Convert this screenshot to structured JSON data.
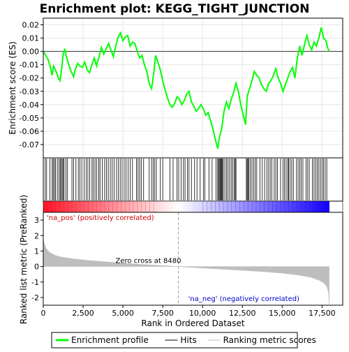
{
  "chart_data": {
    "type": "line",
    "title": "Enrichment plot: KEGG_TIGHT_JUNCTION",
    "colors": {
      "es_line": "#00ff00",
      "hits": "#000000",
      "metric_fill": "#bebebe",
      "pos_label": "#cc0000",
      "neg_label": "#0000cc",
      "zero_line": "#a0a0a0"
    },
    "enrichment_panel": {
      "ylabel": "Enrichment score (ES)",
      "ylim": [
        -0.08,
        0.025
      ],
      "yticks": [
        0.02,
        0.01,
        0.0,
        -0.01,
        -0.02,
        -0.03,
        -0.04,
        -0.05,
        -0.06,
        -0.07
      ],
      "ytick_labels": [
        "0.02",
        "0.01",
        "0.00",
        "-0.01",
        "-0.02",
        "-0.03",
        "-0.04",
        "-0.05",
        "-0.06",
        "-0.07"
      ],
      "grid": true,
      "es_points": [
        [
          0,
          0.0
        ],
        [
          150,
          -0.003
        ],
        [
          300,
          -0.006
        ],
        [
          450,
          -0.012
        ],
        [
          550,
          -0.018
        ],
        [
          650,
          -0.011
        ],
        [
          800,
          -0.015
        ],
        [
          950,
          -0.02
        ],
        [
          1050,
          -0.022
        ],
        [
          1150,
          -0.014
        ],
        [
          1250,
          -0.002
        ],
        [
          1350,
          0.002
        ],
        [
          1450,
          -0.004
        ],
        [
          1600,
          -0.01
        ],
        [
          1750,
          -0.015
        ],
        [
          1900,
          -0.019
        ],
        [
          2000,
          -0.014
        ],
        [
          2150,
          -0.009
        ],
        [
          2300,
          -0.011
        ],
        [
          2450,
          -0.012
        ],
        [
          2600,
          -0.008
        ],
        [
          2750,
          -0.014
        ],
        [
          2900,
          -0.016
        ],
        [
          3050,
          -0.01
        ],
        [
          3200,
          -0.005
        ],
        [
          3350,
          -0.011
        ],
        [
          3500,
          -0.004
        ],
        [
          3650,
          0.003
        ],
        [
          3800,
          -0.002
        ],
        [
          3950,
          0.002
        ],
        [
          4100,
          0.006
        ],
        [
          4250,
          0.001
        ],
        [
          4400,
          -0.004
        ],
        [
          4550,
          0.004
        ],
        [
          4700,
          0.011
        ],
        [
          4850,
          0.014
        ],
        [
          5000,
          0.008
        ],
        [
          5150,
          0.011
        ],
        [
          5300,
          0.012
        ],
        [
          5450,
          0.004
        ],
        [
          5600,
          0.007
        ],
        [
          5750,
          0.006
        ],
        [
          5900,
          0.0
        ],
        [
          6050,
          -0.005
        ],
        [
          6200,
          -0.003
        ],
        [
          6350,
          -0.01
        ],
        [
          6500,
          -0.015
        ],
        [
          6650,
          -0.024
        ],
        [
          6800,
          -0.028
        ],
        [
          6950,
          -0.015
        ],
        [
          7050,
          -0.003
        ],
        [
          7200,
          -0.008
        ],
        [
          7350,
          -0.014
        ],
        [
          7500,
          -0.022
        ],
        [
          7650,
          -0.029
        ],
        [
          7800,
          -0.035
        ],
        [
          7950,
          -0.04
        ],
        [
          8100,
          -0.042
        ],
        [
          8250,
          -0.039
        ],
        [
          8400,
          -0.034
        ],
        [
          8550,
          -0.036
        ],
        [
          8700,
          -0.04
        ],
        [
          8850,
          -0.037
        ],
        [
          9000,
          -0.032
        ],
        [
          9150,
          -0.03
        ],
        [
          9300,
          -0.038
        ],
        [
          9450,
          -0.041
        ],
        [
          9600,
          -0.045
        ],
        [
          9750,
          -0.043
        ],
        [
          9900,
          -0.04
        ],
        [
          10050,
          -0.043
        ],
        [
          10200,
          -0.048
        ],
        [
          10350,
          -0.046
        ],
        [
          10500,
          -0.052
        ],
        [
          10650,
          -0.058
        ],
        [
          10800,
          -0.066
        ],
        [
          10950,
          -0.073
        ],
        [
          11050,
          -0.065
        ],
        [
          11200,
          -0.058
        ],
        [
          11350,
          -0.045
        ],
        [
          11500,
          -0.038
        ],
        [
          11650,
          -0.043
        ],
        [
          11800,
          -0.036
        ],
        [
          11950,
          -0.031
        ],
        [
          12100,
          -0.024
        ],
        [
          12250,
          -0.03
        ],
        [
          12400,
          -0.04
        ],
        [
          12550,
          -0.048
        ],
        [
          12700,
          -0.055
        ],
        [
          12800,
          -0.034
        ],
        [
          12950,
          -0.028
        ],
        [
          13100,
          -0.022
        ],
        [
          13250,
          -0.015
        ],
        [
          13400,
          -0.018
        ],
        [
          13550,
          -0.02
        ],
        [
          13700,
          -0.025
        ],
        [
          13850,
          -0.028
        ],
        [
          14000,
          -0.03
        ],
        [
          14150,
          -0.024
        ],
        [
          14300,
          -0.022
        ],
        [
          14450,
          -0.018
        ],
        [
          14600,
          -0.013
        ],
        [
          14750,
          -0.02
        ],
        [
          14900,
          -0.024
        ],
        [
          15050,
          -0.03
        ],
        [
          15200,
          -0.025
        ],
        [
          15350,
          -0.02
        ],
        [
          15500,
          -0.015
        ],
        [
          15650,
          -0.012
        ],
        [
          15800,
          -0.02
        ],
        [
          15950,
          -0.005
        ],
        [
          16100,
          0.004
        ],
        [
          16250,
          -0.003
        ],
        [
          16400,
          0.005
        ],
        [
          16550,
          0.012
        ],
        [
          16700,
          0.005
        ],
        [
          16850,
          0.001
        ],
        [
          17000,
          0.007
        ],
        [
          17150,
          0.004
        ],
        [
          17300,
          0.01
        ],
        [
          17450,
          0.018
        ],
        [
          17600,
          0.01
        ],
        [
          17750,
          0.008
        ],
        [
          17850,
          0.003
        ],
        [
          17950,
          0.0
        ]
      ],
      "hit_positions": [
        120,
        210,
        420,
        560,
        620,
        700,
        760,
        880,
        980,
        1060,
        1120,
        1190,
        1250,
        1310,
        1420,
        1520,
        1800,
        1900,
        2050,
        2200,
        2300,
        2420,
        2560,
        2700,
        2800,
        2920,
        3060,
        3150,
        3250,
        3360,
        3480,
        3560,
        3700,
        3850,
        3960,
        4080,
        4210,
        4330,
        4450,
        4600,
        4720,
        4830,
        4950,
        5080,
        5200,
        5330,
        5460,
        5600,
        5850,
        5950,
        6050,
        6150,
        6300,
        6650,
        6800,
        6900,
        7000,
        7100,
        7350,
        7500,
        7950,
        8150,
        8400,
        8500,
        8650,
        8800,
        8900,
        9050,
        9150,
        9300,
        9500,
        9650,
        9850,
        10050,
        10150,
        10400,
        10600,
        10850,
        10950,
        11000,
        11050,
        11100,
        11150,
        11200,
        11250,
        11300,
        11400,
        11500,
        11600,
        11700,
        11800,
        11900,
        12000,
        12050,
        12100,
        12750,
        12800,
        12850,
        12900,
        13000,
        13100,
        13200,
        13300,
        13400,
        13600,
        13750,
        13900,
        14050,
        14150,
        14250,
        14350,
        14500,
        14600,
        14700,
        14900,
        15050,
        15150,
        15250,
        15350,
        15400,
        15500,
        15600,
        15700,
        15900,
        16000,
        16100,
        16200,
        16300,
        16500,
        16600,
        16700,
        16900,
        17000,
        17100,
        17200,
        17300,
        17400,
        17500,
        17600,
        17700,
        17800
      ]
    },
    "ranking_panel": {
      "ylabel": "Ranked list metric (PreRanked)",
      "ylim": [
        -2.5,
        3.5
      ],
      "yticks": [
        3,
        2,
        1,
        0,
        -1,
        -2
      ],
      "ytick_labels": [
        "3",
        "2",
        "1",
        "0",
        "-1",
        "-2"
      ],
      "metric_points": [
        [
          0,
          1.85
        ],
        [
          50,
          1.55
        ],
        [
          150,
          1.25
        ],
        [
          300,
          1.0
        ],
        [
          500,
          0.85
        ],
        [
          800,
          0.7
        ],
        [
          1200,
          0.6
        ],
        [
          2000,
          0.48
        ],
        [
          3000,
          0.38
        ],
        [
          4000,
          0.3
        ],
        [
          5000,
          0.22
        ],
        [
          6000,
          0.15
        ],
        [
          7000,
          0.09
        ],
        [
          8000,
          0.03
        ],
        [
          8480,
          0.0
        ],
        [
          9000,
          -0.04
        ],
        [
          10000,
          -0.1
        ],
        [
          11000,
          -0.16
        ],
        [
          12000,
          -0.22
        ],
        [
          13000,
          -0.28
        ],
        [
          14000,
          -0.35
        ],
        [
          15000,
          -0.43
        ],
        [
          16000,
          -0.55
        ],
        [
          16800,
          -0.7
        ],
        [
          17300,
          -0.88
        ],
        [
          17600,
          -1.05
        ],
        [
          17800,
          -1.3
        ],
        [
          17900,
          -1.65
        ],
        [
          17950,
          -2.4
        ]
      ],
      "zero_cross_label": "Zero cross at 8480",
      "zero_cross": 8480,
      "pos_label": "'na_pos' (positively correlated)",
      "neg_label": "'na_neg' (negatively correlated)"
    },
    "x_axis": {
      "xlabel": "Rank in Ordered Dataset",
      "xlim": [
        0,
        18800
      ],
      "xticks": [
        0,
        2500,
        5000,
        7500,
        10000,
        12500,
        15000,
        17500
      ],
      "xtick_labels": [
        "0",
        "2,500",
        "5,000",
        "7,500",
        "10,000",
        "12,500",
        "15,000",
        "17,500"
      ],
      "n_genes": 17950
    },
    "legend": {
      "placement": "bottom",
      "items": [
        {
          "label": "Enrichment profile",
          "color": "#00ff00",
          "kind": "line-thick"
        },
        {
          "label": "Hits",
          "color": "#000000",
          "kind": "line"
        },
        {
          "label": "Ranking metric scores",
          "color": "#bebebe",
          "kind": "line"
        }
      ]
    }
  }
}
